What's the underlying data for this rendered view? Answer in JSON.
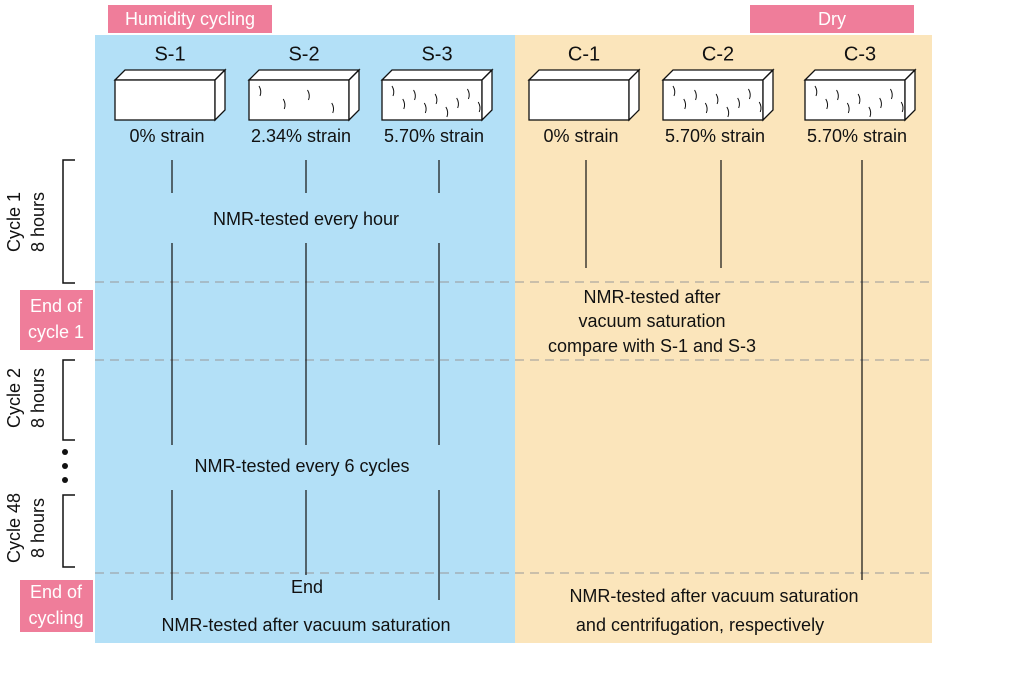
{
  "groups": [
    {
      "label": "Humidity cycling"
    },
    {
      "label": "Dry"
    }
  ],
  "specimens": [
    {
      "name": "S-1",
      "strain": "0% strain"
    },
    {
      "name": "S-2",
      "strain": "2.34% strain"
    },
    {
      "name": "S-3",
      "strain": "5.70% strain"
    },
    {
      "name": "C-1",
      "strain": "0% strain"
    },
    {
      "name": "C-2",
      "strain": "5.70% strain"
    },
    {
      "name": "C-3",
      "strain": "5.70% strain"
    }
  ],
  "phases": [
    {
      "lines": [
        "Cycle 1",
        "8 hours"
      ]
    },
    {
      "lines": [
        "End of",
        "cycle 1"
      ]
    },
    {
      "lines": [
        "Cycle 2",
        "8 hours"
      ]
    },
    {
      "lines": [
        "Cycle 48",
        "8 hours"
      ]
    },
    {
      "lines": [
        "End of",
        "cycling"
      ]
    }
  ],
  "notes": {
    "every_hour": "NMR-tested every hour",
    "control_after": [
      "NMR-tested after",
      "vacuum saturation",
      "compare with S-1 and S-3"
    ],
    "every_6_cycles": "NMR-tested every 6 cycles",
    "end": "End",
    "final_humidity": "NMR-tested after vacuum saturation",
    "final_dry": [
      "NMR-tested after vacuum saturation",
      "and centrifugation, respectively"
    ]
  }
}
